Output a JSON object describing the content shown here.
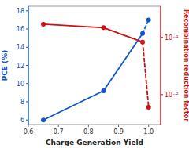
{
  "chart_data": {
    "type": "line",
    "x": [
      0.65,
      0.85,
      0.98,
      1.0
    ],
    "xlabel": "Charge Generation Yield",
    "ylabel": "PCE (%)",
    "y2label": "Recombination reduction factor",
    "xlim": [
      0.6,
      1.04
    ],
    "xticks": [
      0.6,
      0.7,
      0.8,
      0.9,
      {
        "value": 1.0,
        "label": "1.0"
      }
    ],
    "ylim": [
      5.5,
      18.5
    ],
    "yticks": [
      6,
      8,
      10,
      12,
      14,
      16,
      18
    ],
    "y2lim": [
      0.003,
      0.35
    ],
    "y2ticks": [
      {
        "value": 0.01,
        "label": "10⁻²"
      },
      {
        "value": 0.1,
        "label": "10⁻¹"
      }
    ],
    "log": "y2",
    "grid": false,
    "series": [
      {
        "color": "#1155cc",
        "marker": "circle",
        "values": [
          6.0,
          9.2,
          15.5,
          17.0
        ]
      },
      {
        "color": "#cc1111",
        "marker": "circle",
        "axis": "y2",
        "values": [
          0.17,
          0.148,
          0.083,
          0.006
        ]
      }
    ]
  }
}
